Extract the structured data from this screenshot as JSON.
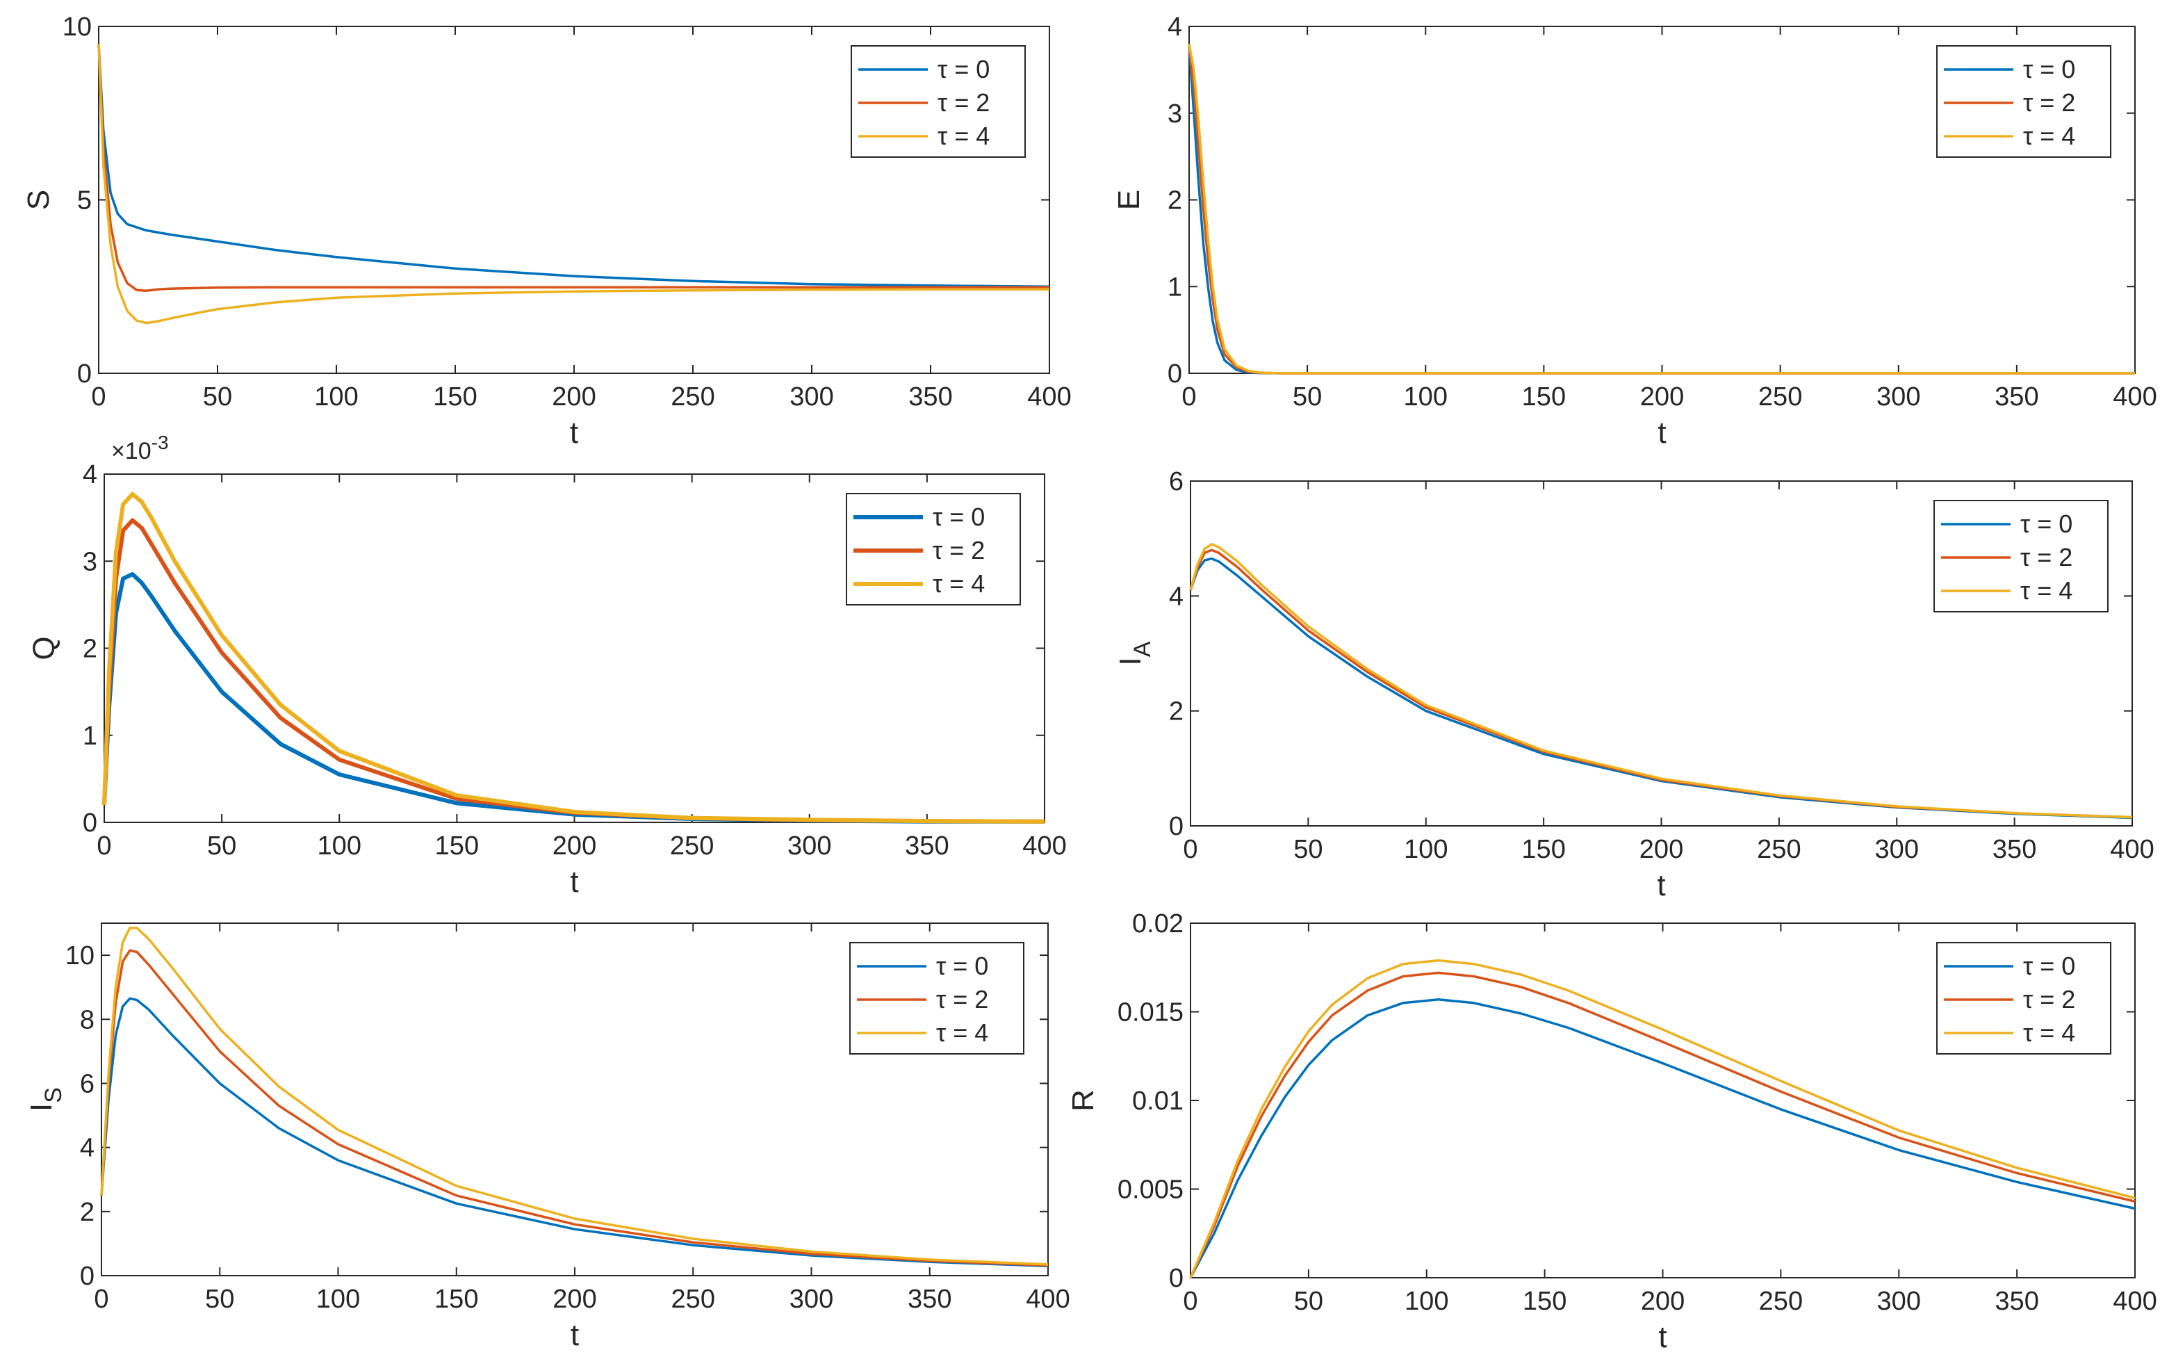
{
  "figure": {
    "legend_labels": [
      "τ = 0",
      "τ = 2",
      "τ = 4"
    ],
    "series_colors": [
      "#0072BD",
      "#D95319",
      "#EDB120"
    ]
  },
  "chart_data": [
    {
      "type": "line",
      "ylabel": "S",
      "xlabel": "t",
      "xlim": [
        0,
        400
      ],
      "ylim": [
        0,
        10
      ],
      "xticks": [
        "0",
        "50",
        "100",
        "150",
        "200",
        "250",
        "300",
        "350",
        "400"
      ],
      "yticks": [
        "0",
        "5",
        "10"
      ],
      "legend": "top-right",
      "series": [
        {
          "name": "τ = 0",
          "x": [
            0,
            2,
            5,
            8,
            12,
            20,
            30,
            50,
            75,
            100,
            150,
            200,
            250,
            300,
            350,
            400
          ],
          "values": [
            9.5,
            7.0,
            5.2,
            4.6,
            4.3,
            4.12,
            4.0,
            3.8,
            3.55,
            3.35,
            3.02,
            2.8,
            2.66,
            2.57,
            2.53,
            2.5
          ]
        },
        {
          "name": "τ = 2",
          "x": [
            0,
            2,
            5,
            8,
            12,
            16,
            20,
            25,
            30,
            50,
            75,
            100,
            150,
            200,
            250,
            300,
            350,
            400
          ],
          "values": [
            9.5,
            6.5,
            4.3,
            3.2,
            2.6,
            2.4,
            2.38,
            2.42,
            2.44,
            2.47,
            2.48,
            2.48,
            2.48,
            2.48,
            2.48,
            2.48,
            2.48,
            2.48
          ]
        },
        {
          "name": "τ = 4",
          "x": [
            0,
            2,
            5,
            8,
            12,
            16,
            20,
            25,
            30,
            40,
            50,
            75,
            100,
            150,
            200,
            250,
            300,
            350,
            400
          ],
          "values": [
            9.5,
            6.0,
            3.7,
            2.5,
            1.8,
            1.52,
            1.45,
            1.5,
            1.58,
            1.72,
            1.85,
            2.05,
            2.18,
            2.3,
            2.36,
            2.39,
            2.41,
            2.42,
            2.42
          ]
        }
      ]
    },
    {
      "type": "line",
      "ylabel": "E",
      "xlabel": "t",
      "xlim": [
        0,
        400
      ],
      "ylim": [
        0,
        4
      ],
      "xticks": [
        "0",
        "50",
        "100",
        "150",
        "200",
        "250",
        "300",
        "350",
        "400"
      ],
      "yticks": [
        "0",
        "1",
        "2",
        "3",
        "4"
      ],
      "legend": "top-right",
      "series": [
        {
          "name": "τ = 0",
          "x": [
            0,
            2,
            4,
            6,
            8,
            10,
            12,
            15,
            20,
            25,
            30,
            40,
            60,
            100,
            200,
            300,
            400
          ],
          "values": [
            3.8,
            3.0,
            2.2,
            1.5,
            1.0,
            0.6,
            0.35,
            0.15,
            0.04,
            0.01,
            0.003,
            0.0,
            0.0,
            0.0,
            0.0,
            0.0,
            0.0
          ]
        },
        {
          "name": "τ = 2",
          "x": [
            0,
            2,
            4,
            6,
            8,
            10,
            12,
            15,
            20,
            25,
            30,
            40,
            60,
            100,
            200,
            300,
            400
          ],
          "values": [
            3.8,
            3.3,
            2.6,
            1.9,
            1.3,
            0.85,
            0.5,
            0.22,
            0.07,
            0.02,
            0.005,
            0.0,
            0.0,
            0.0,
            0.0,
            0.0,
            0.0
          ]
        },
        {
          "name": "τ = 4",
          "x": [
            0,
            2,
            4,
            6,
            8,
            10,
            12,
            15,
            20,
            25,
            30,
            40,
            60,
            100,
            200,
            300,
            400
          ],
          "values": [
            3.8,
            3.5,
            2.9,
            2.2,
            1.55,
            1.0,
            0.62,
            0.28,
            0.09,
            0.03,
            0.008,
            0.0,
            0.0,
            0.0,
            0.0,
            0.0,
            0.0
          ]
        }
      ]
    },
    {
      "type": "line",
      "ylabel": "Q",
      "xlabel": "t",
      "multiplier": "×10",
      "multiplier_exp": "-3",
      "xlim": [
        0,
        400
      ],
      "ylim": [
        0,
        4
      ],
      "xticks": [
        "0",
        "50",
        "100",
        "150",
        "200",
        "250",
        "300",
        "350",
        "400"
      ],
      "yticks": [
        "0",
        "1",
        "2",
        "3",
        "4"
      ],
      "legend": "top-right",
      "thick": true,
      "series": [
        {
          "name": "τ = 0",
          "x": [
            0,
            2,
            5,
            8,
            12,
            16,
            20,
            30,
            50,
            75,
            100,
            150,
            200,
            250,
            300,
            350,
            400
          ],
          "values": [
            0.2,
            1.3,
            2.4,
            2.8,
            2.85,
            2.75,
            2.6,
            2.2,
            1.5,
            0.9,
            0.55,
            0.22,
            0.09,
            0.04,
            0.02,
            0.01,
            0.01
          ]
        },
        {
          "name": "τ = 2",
          "x": [
            0,
            2,
            5,
            8,
            12,
            16,
            20,
            30,
            50,
            75,
            100,
            150,
            200,
            250,
            300,
            350,
            400
          ],
          "values": [
            0.2,
            1.5,
            2.8,
            3.35,
            3.47,
            3.38,
            3.2,
            2.75,
            1.95,
            1.2,
            0.72,
            0.27,
            0.11,
            0.05,
            0.025,
            0.015,
            0.01
          ]
        },
        {
          "name": "τ = 4",
          "x": [
            0,
            2,
            5,
            8,
            12,
            16,
            20,
            30,
            50,
            75,
            100,
            150,
            200,
            250,
            300,
            350,
            400
          ],
          "values": [
            0.2,
            1.7,
            3.1,
            3.65,
            3.77,
            3.68,
            3.5,
            3.0,
            2.15,
            1.35,
            0.82,
            0.31,
            0.12,
            0.05,
            0.03,
            0.015,
            0.01
          ]
        }
      ]
    },
    {
      "type": "line",
      "ylabel": "I",
      "ylabel_sub": "A",
      "xlabel": "t",
      "xlim": [
        0,
        400
      ],
      "ylim": [
        0,
        6
      ],
      "xticks": [
        "0",
        "50",
        "100",
        "150",
        "200",
        "250",
        "300",
        "350",
        "400"
      ],
      "yticks": [
        "0",
        "2",
        "4",
        "6"
      ],
      "legend": "top-right",
      "series": [
        {
          "name": "τ = 0",
          "x": [
            0,
            3,
            6,
            9,
            12,
            20,
            30,
            50,
            75,
            100,
            150,
            200,
            250,
            300,
            350,
            400
          ],
          "values": [
            4.1,
            4.45,
            4.62,
            4.65,
            4.6,
            4.35,
            4.0,
            3.3,
            2.6,
            2.0,
            1.25,
            0.78,
            0.5,
            0.32,
            0.21,
            0.14
          ]
        },
        {
          "name": "τ = 2",
          "x": [
            0,
            3,
            6,
            9,
            12,
            20,
            30,
            50,
            75,
            100,
            150,
            200,
            250,
            300,
            350,
            400
          ],
          "values": [
            4.1,
            4.5,
            4.75,
            4.8,
            4.75,
            4.5,
            4.12,
            3.4,
            2.68,
            2.06,
            1.29,
            0.8,
            0.52,
            0.33,
            0.22,
            0.15
          ]
        },
        {
          "name": "τ = 4",
          "x": [
            0,
            3,
            6,
            9,
            12,
            20,
            30,
            50,
            75,
            100,
            150,
            200,
            250,
            300,
            350,
            400
          ],
          "values": [
            4.1,
            4.55,
            4.82,
            4.9,
            4.85,
            4.6,
            4.2,
            3.47,
            2.73,
            2.1,
            1.31,
            0.82,
            0.53,
            0.34,
            0.22,
            0.15
          ]
        }
      ]
    },
    {
      "type": "line",
      "ylabel": "I",
      "ylabel_sub": "S",
      "xlabel": "t",
      "xlim": [
        0,
        400
      ],
      "ylim": [
        0,
        11
      ],
      "xticks": [
        "0",
        "50",
        "100",
        "150",
        "200",
        "250",
        "300",
        "350",
        "400"
      ],
      "yticks": [
        "0",
        "2",
        "4",
        "6",
        "8",
        "10"
      ],
      "legend": "top-right",
      "series": [
        {
          "name": "τ = 0",
          "x": [
            0,
            3,
            6,
            9,
            12,
            15,
            20,
            30,
            50,
            75,
            100,
            150,
            200,
            250,
            300,
            350,
            400
          ],
          "values": [
            2.5,
            5.5,
            7.5,
            8.4,
            8.65,
            8.6,
            8.3,
            7.5,
            6.0,
            4.6,
            3.6,
            2.25,
            1.45,
            0.95,
            0.63,
            0.43,
            0.3
          ]
        },
        {
          "name": "τ = 2",
          "x": [
            0,
            3,
            6,
            9,
            12,
            15,
            20,
            30,
            50,
            75,
            100,
            150,
            200,
            250,
            300,
            350,
            400
          ],
          "values": [
            2.5,
            6.0,
            8.5,
            9.8,
            10.15,
            10.1,
            9.7,
            8.8,
            7.0,
            5.3,
            4.1,
            2.5,
            1.6,
            1.04,
            0.68,
            0.46,
            0.32
          ]
        },
        {
          "name": "τ = 4",
          "x": [
            0,
            3,
            6,
            9,
            12,
            15,
            20,
            30,
            50,
            75,
            100,
            150,
            200,
            250,
            300,
            350,
            400
          ],
          "values": [
            2.5,
            6.3,
            9.0,
            10.4,
            10.85,
            10.85,
            10.5,
            9.6,
            7.7,
            5.9,
            4.55,
            2.8,
            1.78,
            1.15,
            0.75,
            0.5,
            0.35
          ]
        }
      ]
    },
    {
      "type": "line",
      "ylabel": "R",
      "xlabel": "t",
      "xlim": [
        0,
        400
      ],
      "ylim": [
        0,
        0.02
      ],
      "xticks": [
        "0",
        "50",
        "100",
        "150",
        "200",
        "250",
        "300",
        "350",
        "400"
      ],
      "yticks": [
        "0",
        "0.005",
        "0.01",
        "0.015",
        "0.02"
      ],
      "legend": "top-right",
      "series": [
        {
          "name": "τ = 0",
          "x": [
            0,
            10,
            20,
            30,
            40,
            50,
            60,
            75,
            90,
            105,
            120,
            140,
            160,
            180,
            200,
            250,
            300,
            350,
            400
          ],
          "values": [
            0,
            0.0025,
            0.0055,
            0.008,
            0.0102,
            0.012,
            0.0134,
            0.0148,
            0.0155,
            0.0157,
            0.0155,
            0.0149,
            0.0141,
            0.0131,
            0.0121,
            0.0095,
            0.0072,
            0.0054,
            0.0039
          ]
        },
        {
          "name": "τ = 2",
          "x": [
            0,
            10,
            20,
            30,
            40,
            50,
            60,
            75,
            90,
            105,
            120,
            140,
            160,
            180,
            200,
            250,
            300,
            350,
            400
          ],
          "values": [
            0,
            0.0029,
            0.0063,
            0.0091,
            0.0114,
            0.0133,
            0.0148,
            0.0162,
            0.017,
            0.0172,
            0.017,
            0.0164,
            0.0155,
            0.0144,
            0.0133,
            0.0105,
            0.0079,
            0.0059,
            0.0043
          ]
        },
        {
          "name": "τ = 4",
          "x": [
            0,
            10,
            20,
            30,
            40,
            50,
            60,
            75,
            90,
            105,
            120,
            140,
            160,
            180,
            200,
            250,
            300,
            350,
            400
          ],
          "values": [
            0,
            0.0031,
            0.0066,
            0.0095,
            0.0119,
            0.0139,
            0.0154,
            0.0169,
            0.0177,
            0.0179,
            0.0177,
            0.0171,
            0.0162,
            0.0151,
            0.014,
            0.0111,
            0.0083,
            0.0062,
            0.0045
          ]
        }
      ]
    }
  ]
}
